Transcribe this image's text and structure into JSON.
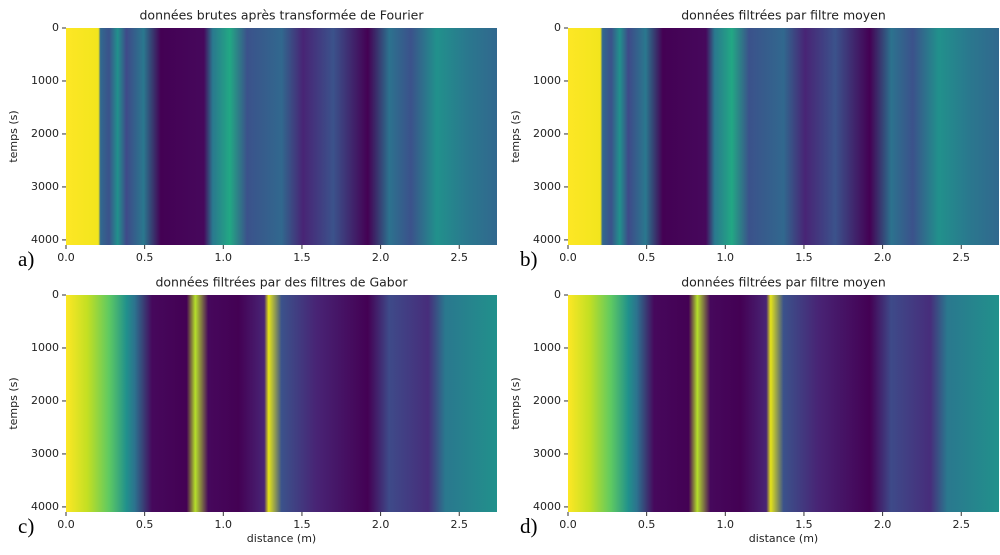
{
  "chart_data": [
    {
      "type": "heatmap",
      "title": "données brutes après transformée de Fourier",
      "panel_label": "a)",
      "y_label": "temps (s)",
      "xlim": [
        0,
        2.74
      ],
      "ylim": [
        4096,
        0
      ],
      "xticks": [
        {
          "value": 0,
          "label": "0.0"
        },
        {
          "value": 0.5,
          "label": "0.5"
        },
        {
          "value": 1,
          "label": "1.0"
        },
        {
          "value": 1.5,
          "label": "1.5"
        },
        {
          "value": 2,
          "label": "2.0"
        },
        {
          "value": 2.5,
          "label": "2.5"
        }
      ],
      "yticks": [
        0,
        1000,
        2000,
        3000,
        4000
      ],
      "style": "raw"
    },
    {
      "type": "heatmap",
      "title": "données filtrées par filtre moyen",
      "panel_label": "b)",
      "y_label": "temps (s)",
      "xlim": [
        0,
        2.74
      ],
      "ylim": [
        4096,
        0
      ],
      "xticks": [
        {
          "value": 0,
          "label": "0.0"
        },
        {
          "value": 0.5,
          "label": "0.5"
        },
        {
          "value": 1,
          "label": "1.0"
        },
        {
          "value": 1.5,
          "label": "1.5"
        },
        {
          "value": 2,
          "label": "2.0"
        },
        {
          "value": 2.5,
          "label": "2.5"
        }
      ],
      "yticks": [
        0,
        1000,
        2000,
        3000,
        4000
      ],
      "style": "raw"
    },
    {
      "type": "heatmap",
      "title": "données filtrées par des filtres de Gabor",
      "panel_label": "c)",
      "y_label": "temps (s)",
      "x_label": "distance (m)",
      "xlim": [
        0,
        2.74
      ],
      "ylim": [
        4096,
        0
      ],
      "xticks": [
        {
          "value": 0,
          "label": "0.0"
        },
        {
          "value": 0.5,
          "label": "0.5"
        },
        {
          "value": 1,
          "label": "1.0"
        },
        {
          "value": 1.5,
          "label": "1.5"
        },
        {
          "value": 2,
          "label": "2.0"
        },
        {
          "value": 2.5,
          "label": "2.5"
        }
      ],
      "yticks": [
        0,
        1000,
        2000,
        3000,
        4000
      ],
      "style": "gabor"
    },
    {
      "type": "heatmap",
      "title": "données filtrées par filtre moyen",
      "panel_label": "d)",
      "y_label": "temps (s)",
      "x_label": "distance (m)",
      "xlim": [
        0,
        2.74
      ],
      "ylim": [
        4096,
        0
      ],
      "xticks": [
        {
          "value": 0,
          "label": "0.0"
        },
        {
          "value": 0.5,
          "label": "0.5"
        },
        {
          "value": 1,
          "label": "1.0"
        },
        {
          "value": 1.5,
          "label": "1.5"
        },
        {
          "value": 2,
          "label": "2.0"
        },
        {
          "value": 2.5,
          "label": "2.5"
        }
      ],
      "yticks": [
        0,
        1000,
        2000,
        3000,
        4000
      ],
      "style": "gabor"
    }
  ]
}
